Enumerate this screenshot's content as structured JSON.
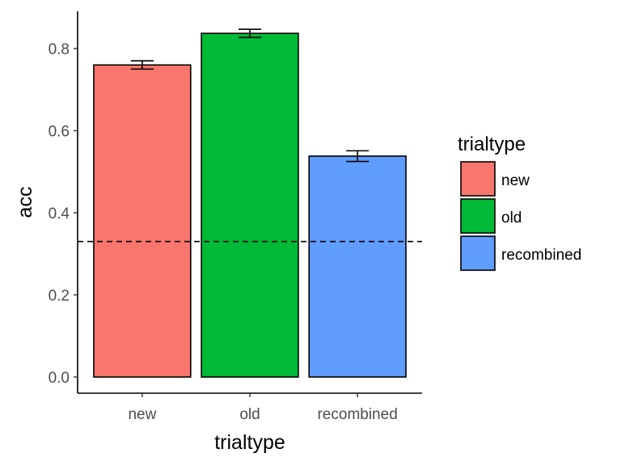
{
  "chart_data": {
    "type": "bar",
    "categories": [
      "new",
      "old",
      "recombined"
    ],
    "values": [
      0.76,
      0.837,
      0.538
    ],
    "error": [
      0.01,
      0.01,
      0.013
    ],
    "colors": [
      "#F8766D",
      "#00BA38",
      "#619CFF"
    ],
    "reference_line": {
      "y": 0.33,
      "style": "dashed"
    },
    "xlabel": "trialtype",
    "ylabel": "acc",
    "ylim": [
      -0.04,
      0.885
    ],
    "yticks": [
      0.0,
      0.2,
      0.4,
      0.6,
      0.8
    ],
    "ytick_labels": [
      "0.0",
      "0.2",
      "0.4",
      "0.6",
      "0.8"
    ],
    "grid": false,
    "legend": {
      "title": "trialtype",
      "position": "right",
      "entries": [
        "new",
        "old",
        "recombined"
      ]
    }
  }
}
